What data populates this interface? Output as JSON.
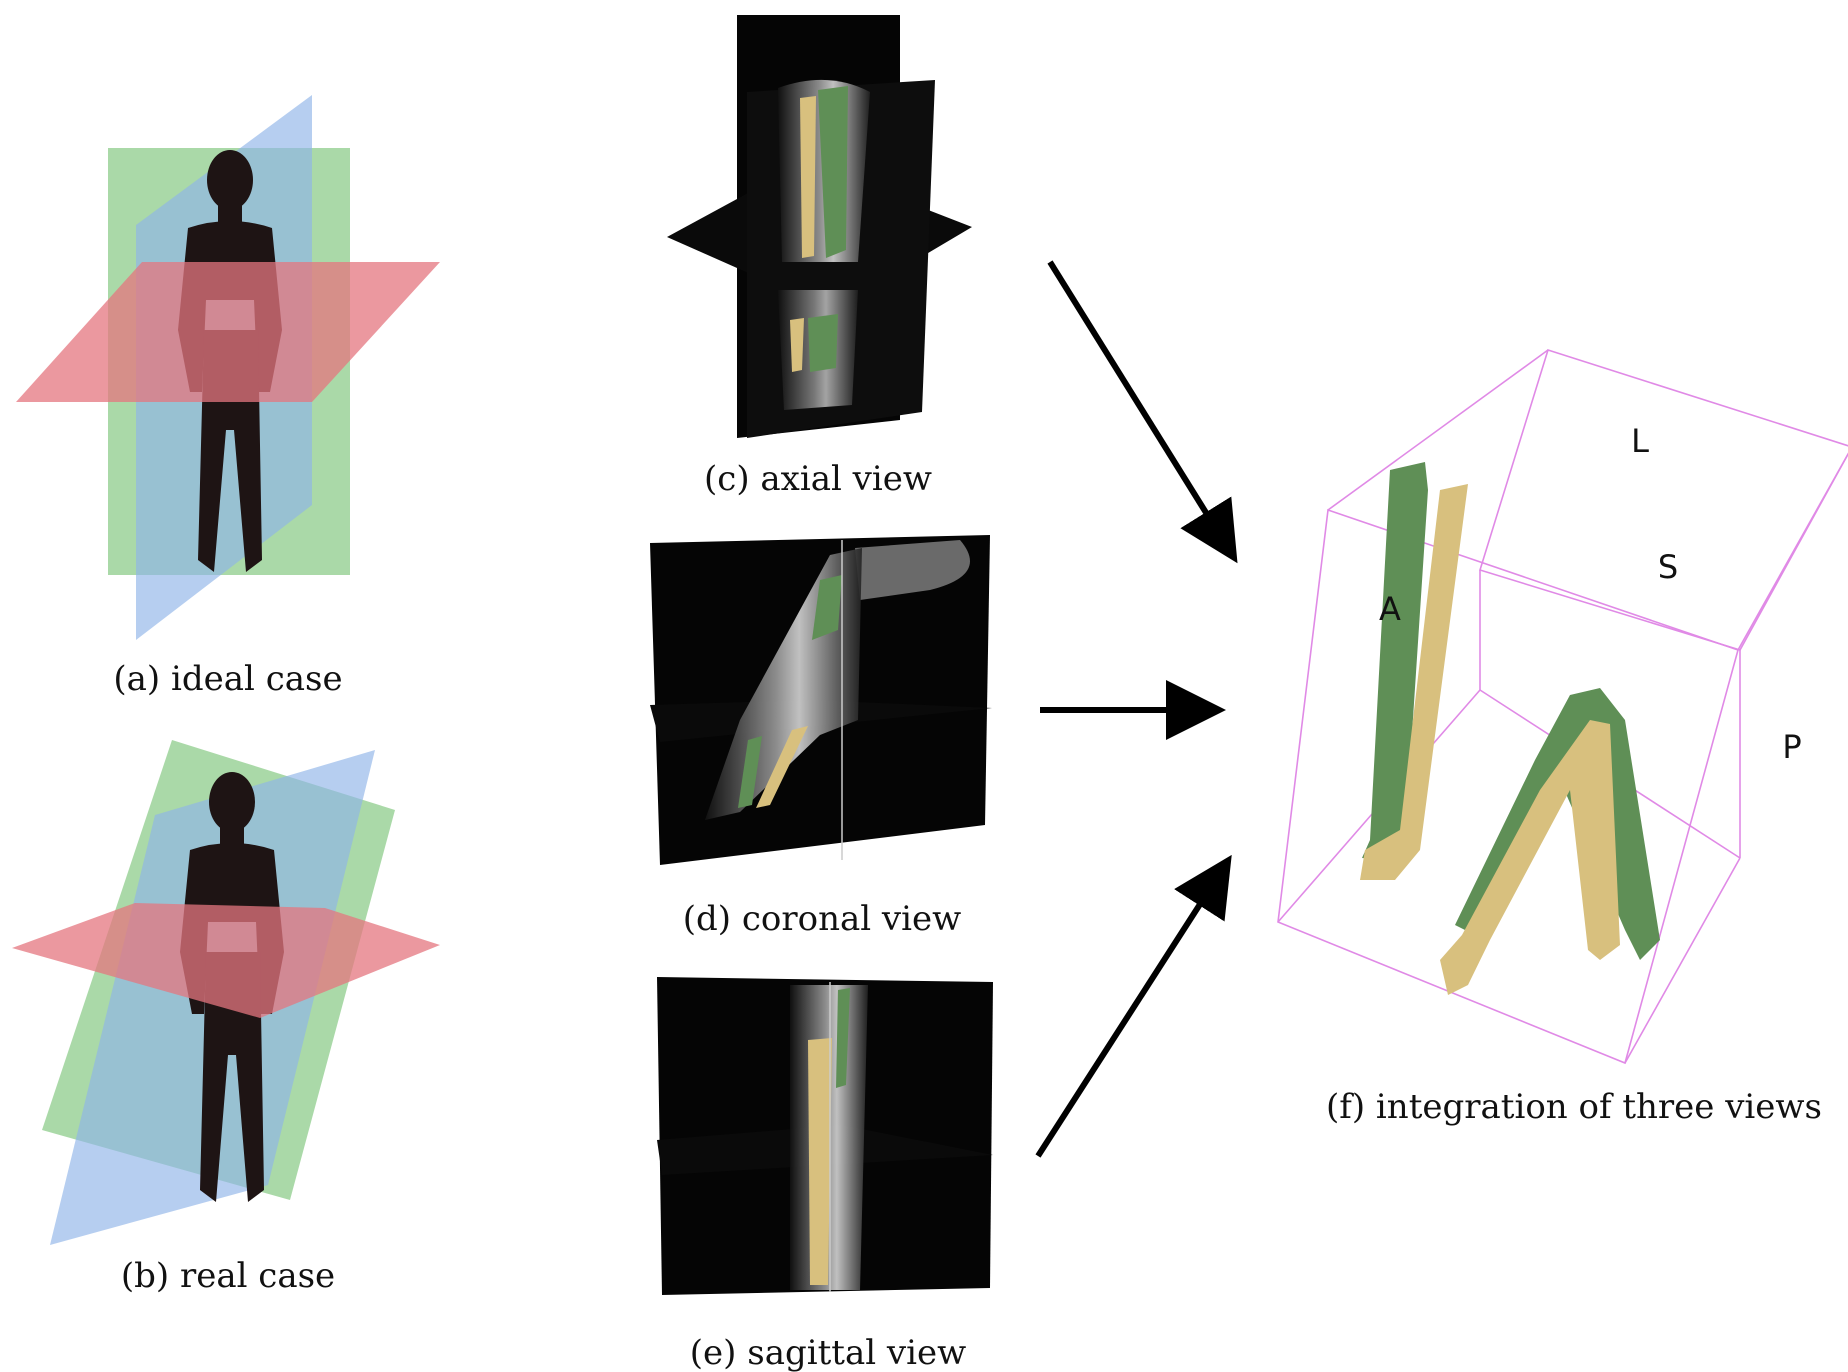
{
  "panels": {
    "a": {
      "caption": "(a) ideal case"
    },
    "b": {
      "caption": "(b) real case"
    },
    "c": {
      "caption": "(c) axial view"
    },
    "d": {
      "caption": "(d) coronal view"
    },
    "e": {
      "caption": "(e) sagittal view"
    },
    "f": {
      "caption": "(f) integration of three views",
      "orientation_labels": {
        "L": "L",
        "S": "S",
        "A": "A",
        "P": "P"
      }
    }
  },
  "colors": {
    "plane_green": "#7dc47a",
    "plane_blue": "#8fb3e8",
    "plane_red": "#e4757f",
    "silhouette": "#1e1414",
    "bone_green": "#5f8f56",
    "bone_tan": "#d8c07e",
    "mri_bg": "#050505",
    "box_edge": "#e08ae6",
    "arrow": "#000000"
  }
}
